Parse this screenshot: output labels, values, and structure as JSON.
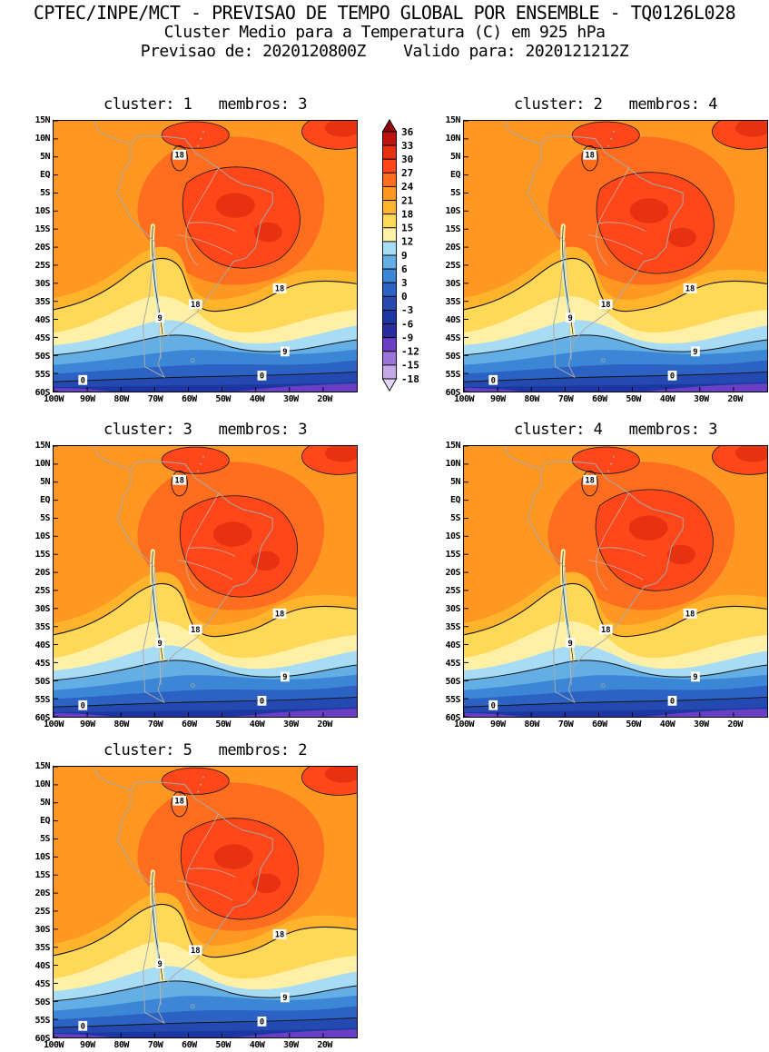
{
  "header": {
    "line1": "CPTEC/INPE/MCT - PREVISAO DE TEMPO GLOBAL POR ENSEMBLE - TQ0126L028",
    "line2": "Cluster Medio para a Temperatura (C) em 925 hPa",
    "line3": "Previsao de: 2020120800Z    Valido para: 2020121212Z"
  },
  "panels": [
    {
      "cluster": 1,
      "membros": 3,
      "title": "cluster: 1   membros: 3"
    },
    {
      "cluster": 2,
      "membros": 4,
      "title": "cluster: 2   membros: 4"
    },
    {
      "cluster": 3,
      "membros": 3,
      "title": "cluster: 3   membros: 3"
    },
    {
      "cluster": 4,
      "membros": 3,
      "title": "cluster: 4   membros: 3"
    },
    {
      "cluster": 5,
      "membros": 2,
      "title": "cluster: 5   membros: 2"
    }
  ],
  "axes": {
    "lat_labels": [
      "15N",
      "10N",
      "5N",
      "EQ",
      "5S",
      "10S",
      "15S",
      "20S",
      "25S",
      "30S",
      "35S",
      "40S",
      "45S",
      "50S",
      "55S",
      "60S"
    ],
    "lon_labels": [
      "100W",
      "90W",
      "80W",
      "70W",
      "60W",
      "50W",
      "40W",
      "30W",
      "20W"
    ]
  },
  "colorbar": {
    "ticks": [
      36,
      33,
      30,
      27,
      24,
      21,
      18,
      15,
      12,
      9,
      6,
      3,
      0,
      -3,
      -6,
      -9,
      -12,
      -15,
      -18
    ],
    "segment_colors": [
      "#BE1410",
      "#E63211",
      "#FF4719",
      "#FF6E1E",
      "#FF9822",
      "#FFB42C",
      "#FFD858",
      "#FFF0A6",
      "#A8DCF4",
      "#64AEE6",
      "#3C86D6",
      "#2B62C4",
      "#2449B0",
      "#1D37A2",
      "#2A2D9E",
      "#6A3FC4",
      "#9B74D8",
      "#C4A8E8"
    ],
    "over_color": "#8F0A0A",
    "under_color": "#E2D4F6"
  },
  "map": {
    "contour_labels": [
      "18",
      "9",
      "0"
    ],
    "colors": {
      "contour": "#141414",
      "coast": "#A8A8A8",
      "border": "#BEBEBE",
      "label_bg": "#FFFFFF"
    }
  },
  "chart_data": {
    "type": "heatmap",
    "subtype": "ensemble-cluster-mean filled-contour temperature maps over South America",
    "title": "CPTEC/INPE/MCT - PREVISAO DE TEMPO GLOBAL POR ENSEMBLE - TQ0126L028",
    "subtitle": "Cluster Medio para a Temperatura (C) em 925 hPa",
    "forecast_init": "2020120800Z",
    "forecast_valid": "2020121212Z",
    "variable": "Temperatura",
    "units": "C",
    "level": "925 hPa",
    "panels": [
      {
        "cluster": 1,
        "membros": 3
      },
      {
        "cluster": 2,
        "membros": 4
      },
      {
        "cluster": 3,
        "membros": 3
      },
      {
        "cluster": 4,
        "membros": 3
      },
      {
        "cluster": 5,
        "membros": 2
      }
    ],
    "region": {
      "lon_range": [
        "100W",
        "10W"
      ],
      "lat_range": [
        "60S",
        "15N"
      ]
    },
    "x_ticks": [
      "100W",
      "90W",
      "80W",
      "70W",
      "60W",
      "50W",
      "40W",
      "30W",
      "20W"
    ],
    "y_ticks": [
      "15N",
      "10N",
      "5N",
      "EQ",
      "5S",
      "10S",
      "15S",
      "20S",
      "25S",
      "30S",
      "35S",
      "40S",
      "45S",
      "50S",
      "55S",
      "60S"
    ],
    "shading_interval": 3,
    "colorbar_range": [
      -18,
      36
    ],
    "colorbar_ticks": [
      36,
      33,
      30,
      27,
      24,
      21,
      18,
      15,
      12,
      9,
      6,
      3,
      0,
      -3,
      -6,
      -9,
      -12,
      -15,
      -18
    ],
    "contour_levels_labeled": [
      18,
      9,
      0
    ],
    "legend_position": "vertical colorbar between row-1 panels",
    "grid": false,
    "layout": "2-column grid, 5 panels (clusters 1-5), colorbar right of cluster 1"
  }
}
